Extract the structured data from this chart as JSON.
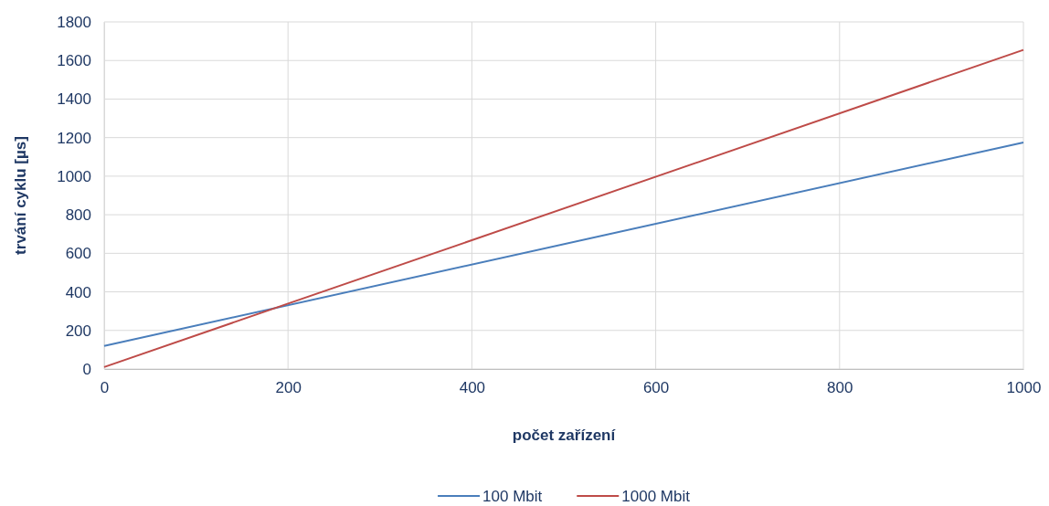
{
  "chart_data": {
    "type": "line",
    "xlabel": "počet zařízení",
    "ylabel": "trvání cyklu [µs]",
    "x": [
      0,
      1000
    ],
    "series": [
      {
        "name": "100 Mbit",
        "color": "#4a7ebb",
        "values": [
          120,
          1175
        ]
      },
      {
        "name": "1000 Mbit",
        "color": "#be4b48",
        "values": [
          10,
          1655
        ]
      }
    ],
    "xlim": [
      0,
      1000
    ],
    "xticks": [
      0,
      200,
      400,
      600,
      800,
      1000
    ],
    "ylim": [
      0,
      1800
    ],
    "yticks": [
      0,
      200,
      400,
      600,
      800,
      1000,
      1200,
      1400,
      1600,
      1800
    ],
    "grid": true,
    "legend": "bottom",
    "marker": "none",
    "line_style": "solid"
  }
}
